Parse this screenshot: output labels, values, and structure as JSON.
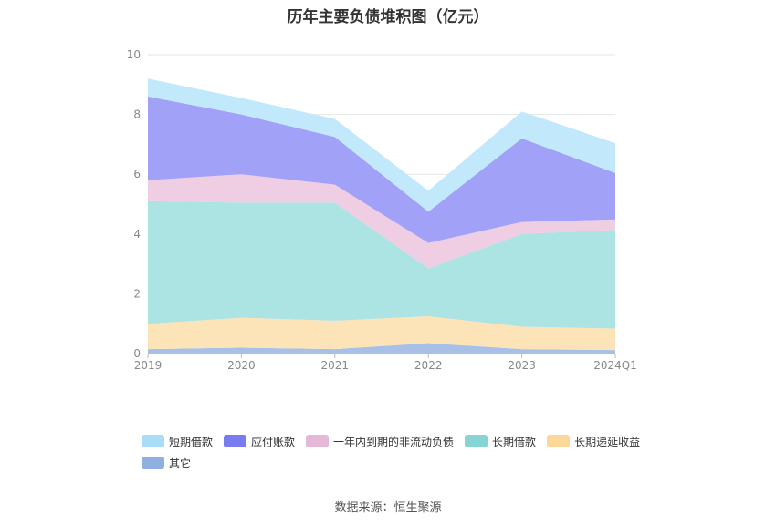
{
  "chart_data": {
    "type": "area",
    "title": "历年主要负债堆积图（亿元）",
    "categories": [
      "2019",
      "2020",
      "2021",
      "2022",
      "2023",
      "2024Q1"
    ],
    "ylim": [
      0,
      10
    ],
    "yticks": [
      "0",
      "2",
      "4",
      "6",
      "8",
      "10"
    ],
    "stacked": true,
    "grid": true,
    "legend_position": "bottom",
    "series": [
      {
        "name": "其它",
        "color": "#a8c0e8",
        "values": [
          0.15,
          0.2,
          0.15,
          0.35,
          0.15,
          0.12
        ]
      },
      {
        "name": "长期递延收益",
        "color": "#fde3b8",
        "values": [
          0.85,
          1.0,
          0.95,
          0.9,
          0.75,
          0.72
        ]
      },
      {
        "name": "长期借款",
        "color": "#ace3e3",
        "values": [
          4.1,
          3.85,
          3.95,
          1.6,
          3.1,
          3.3
        ]
      },
      {
        "name": "一年内到期的非流动负债",
        "color": "#efcde3",
        "values": [
          0.7,
          0.95,
          0.6,
          0.85,
          0.4,
          0.35
        ]
      },
      {
        "name": "应付账款",
        "color": "#a1a1f8",
        "values": [
          2.8,
          2.0,
          1.6,
          1.05,
          2.8,
          1.55
        ]
      },
      {
        "name": "短期借款",
        "color": "#c2e9fb",
        "values": [
          0.6,
          0.55,
          0.6,
          0.7,
          0.9,
          1.0
        ]
      }
    ]
  },
  "legend": {
    "row1": [
      {
        "label": "短期借款",
        "color": "#a9dcf7"
      },
      {
        "label": "应付账款",
        "color": "#7b7bf0"
      },
      {
        "label": "一年内到期的非流动负债",
        "color": "#e6b8d8"
      },
      {
        "label": "长期借款",
        "color": "#86d4d4"
      },
      {
        "label": "长期递延收益",
        "color": "#fcd79a"
      }
    ],
    "row2": [
      {
        "label": "其它",
        "color": "#8fafe0"
      }
    ]
  },
  "source": "数据来源：恒生聚源"
}
